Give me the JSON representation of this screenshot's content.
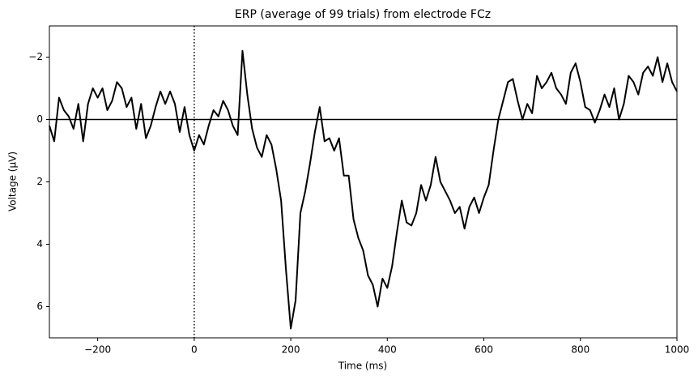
{
  "chart_data": {
    "type": "line",
    "title": "ERP (average of 99 trials) from electrode FCz",
    "x_label": "Time (ms)",
    "y_label": "Voltage (µV)",
    "x": [
      -300,
      -290,
      -280,
      -270,
      -260,
      -250,
      -240,
      -230,
      -220,
      -210,
      -200,
      -190,
      -180,
      -170,
      -160,
      -150,
      -140,
      -130,
      -120,
      -110,
      -100,
      -90,
      -80,
      -70,
      -60,
      -50,
      -40,
      -30,
      -20,
      -10,
      0,
      10,
      20,
      30,
      40,
      50,
      60,
      70,
      80,
      90,
      100,
      110,
      120,
      130,
      140,
      150,
      160,
      170,
      180,
      190,
      200,
      210,
      220,
      230,
      240,
      250,
      260,
      270,
      280,
      290,
      300,
      310,
      320,
      330,
      340,
      350,
      360,
      370,
      380,
      390,
      400,
      410,
      420,
      430,
      440,
      450,
      460,
      470,
      480,
      490,
      500,
      510,
      520,
      530,
      540,
      550,
      560,
      570,
      580,
      590,
      600,
      610,
      620,
      630,
      640,
      650,
      660,
      670,
      680,
      690,
      700,
      710,
      720,
      730,
      740,
      750,
      760,
      770,
      780,
      790,
      800,
      810,
      820,
      830,
      840,
      850,
      860,
      870,
      880,
      890,
      900,
      910,
      920,
      930,
      940,
      950,
      960,
      970,
      980,
      990,
      1000
    ],
    "values": [
      0.2,
      0.7,
      -0.7,
      -0.3,
      -0.1,
      0.3,
      -0.5,
      0.7,
      -0.5,
      -1.0,
      -0.7,
      -1.0,
      -0.3,
      -0.6,
      -1.2,
      -1.0,
      -0.4,
      -0.7,
      0.3,
      -0.5,
      0.6,
      0.2,
      -0.4,
      -0.9,
      -0.5,
      -0.9,
      -0.5,
      0.4,
      -0.4,
      0.5,
      1.0,
      0.5,
      0.8,
      0.2,
      -0.3,
      -0.1,
      -0.6,
      -0.3,
      0.2,
      0.5,
      -2.2,
      -0.8,
      0.3,
      0.9,
      1.2,
      0.5,
      0.8,
      1.6,
      2.6,
      4.8,
      6.7,
      5.8,
      3.0,
      2.3,
      1.4,
      0.4,
      -0.4,
      0.7,
      0.6,
      1.0,
      0.6,
      1.8,
      1.8,
      3.2,
      3.8,
      4.2,
      5.0,
      5.3,
      6.0,
      5.1,
      5.4,
      4.7,
      3.6,
      2.6,
      3.3,
      3.4,
      3.0,
      2.1,
      2.6,
      2.1,
      1.2,
      2.0,
      2.3,
      2.6,
      3.0,
      2.8,
      3.5,
      2.8,
      2.5,
      3.0,
      2.5,
      2.1,
      1.0,
      0.0,
      -0.6,
      -1.2,
      -1.3,
      -0.6,
      0.0,
      -0.5,
      -0.2,
      -1.4,
      -1.0,
      -1.2,
      -1.5,
      -1.0,
      -0.8,
      -0.5,
      -1.5,
      -1.8,
      -1.2,
      -0.4,
      -0.3,
      0.1,
      -0.3,
      -0.8,
      -0.4,
      -1.0,
      0.0,
      -0.5,
      -1.4,
      -1.2,
      -0.8,
      -1.5,
      -1.7,
      -1.4,
      -2.0,
      -1.2,
      -1.8,
      -1.2,
      -0.9
    ],
    "color": "#000000",
    "xlim": [
      -300,
      1000
    ],
    "xticks": [
      {
        "value": -200,
        "label": "−200"
      },
      0,
      200,
      400,
      600,
      800,
      1000
    ],
    "ylim": [
      -3,
      7
    ],
    "y_inverted": true,
    "yticks": [
      {
        "value": -2,
        "label": "−2"
      },
      0,
      2,
      4,
      6
    ],
    "hline": 0,
    "vline": 0
  }
}
